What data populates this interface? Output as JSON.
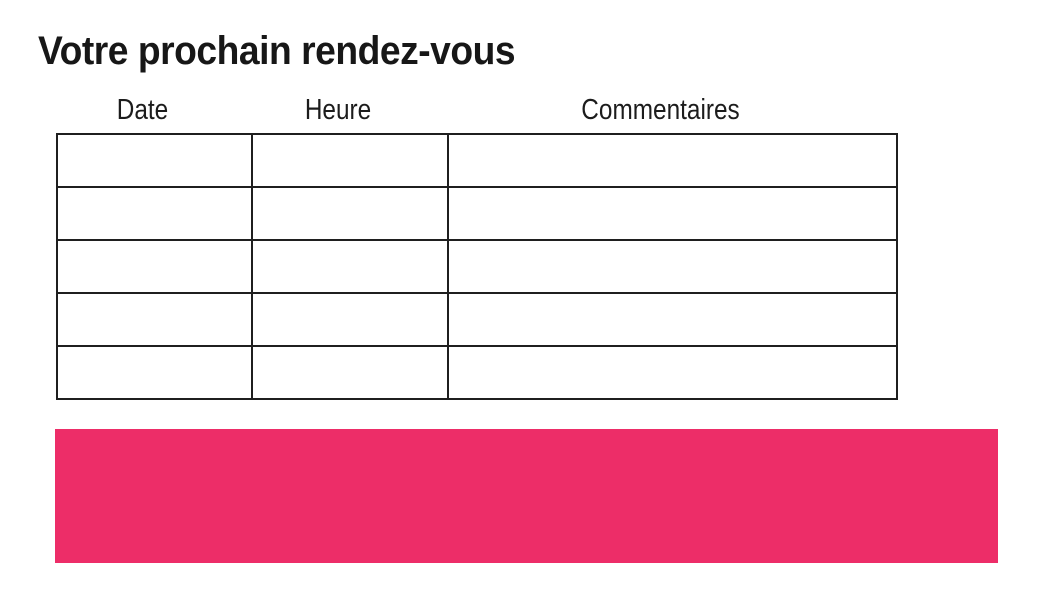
{
  "page": {
    "title": "Votre prochain rendez-vous"
  },
  "table": {
    "columns": [
      {
        "key": "date",
        "label": "Date"
      },
      {
        "key": "heure",
        "label": "Heure"
      },
      {
        "key": "commentaires",
        "label": "Commentaires"
      }
    ],
    "rows": [
      [
        "",
        "",
        ""
      ],
      [
        "",
        "",
        ""
      ],
      [
        "",
        "",
        ""
      ],
      [
        "",
        "",
        ""
      ],
      [
        "",
        "",
        ""
      ]
    ]
  },
  "banner": {
    "text": ""
  },
  "colors": {
    "accent_pink": "#ED2D68",
    "table_border": "#1f1f1f",
    "text": "#171717"
  }
}
